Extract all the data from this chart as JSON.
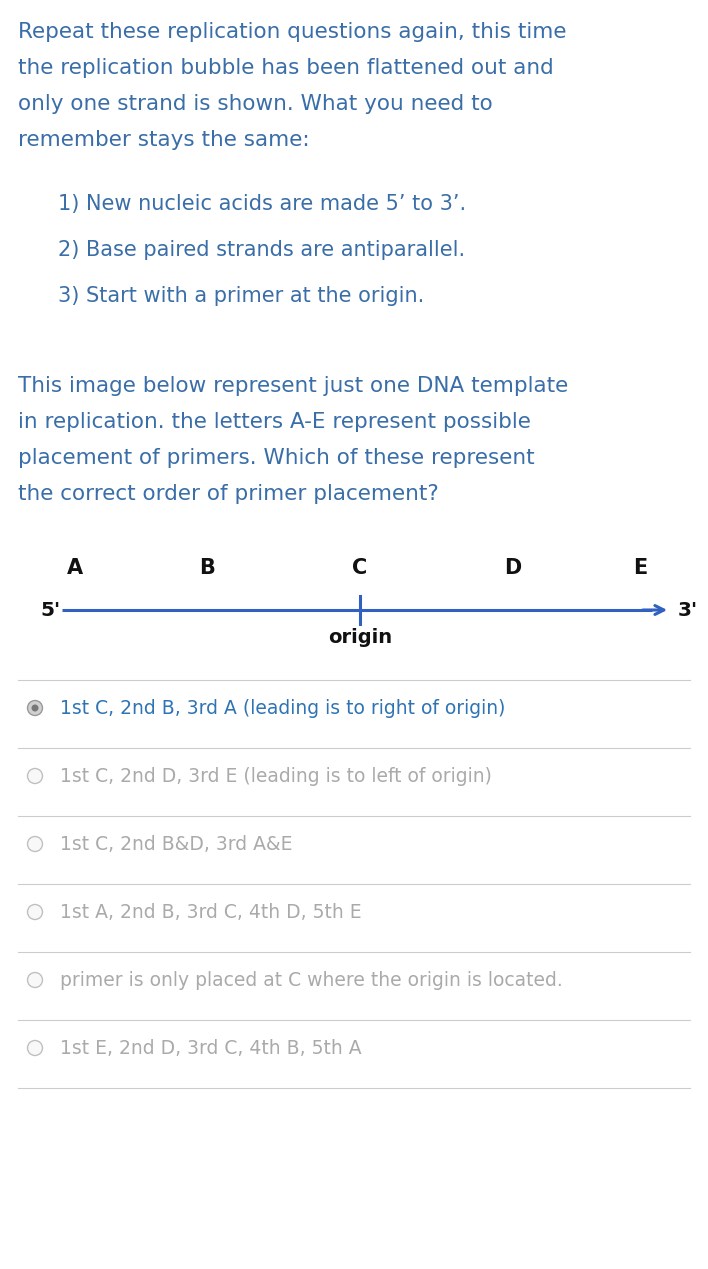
{
  "bg_color": "#ffffff",
  "fig_w": 7.08,
  "fig_h": 12.69,
  "dpi": 100,
  "intro_lines": [
    "Repeat these replication questions again, this time",
    "the replication bubble has been flattened out and",
    "only one strand is shown. What you need to",
    "remember stays the same:"
  ],
  "intro_color": "#3a6ea8",
  "points": [
    "1) New nucleic acids are made 5’ to 3’.",
    "2) Base paired strands are antiparallel.",
    "3) Start with a primer at the origin."
  ],
  "points_color": "#3a6ea8",
  "body_lines": [
    "This image below represent just one DNA template",
    "in replication. the letters A-E represent possible",
    "placement of primers. Which of these represent",
    "the correct order of primer placement?"
  ],
  "body_color": "#3a6ea8",
  "strand_labels": [
    "A",
    "B",
    "C",
    "D",
    "E"
  ],
  "strand_color": "#3060c0",
  "choices": [
    {
      "text": "1st C, 2nd B, 3rd A (leading is to right of origin)",
      "selected": true,
      "text_color": "#2e74b5"
    },
    {
      "text": "1st C, 2nd D, 3rd E (leading is to left of origin)",
      "selected": false,
      "text_color": "#aaaaaa"
    },
    {
      "text": "1st C, 2nd B&D, 3rd A&E",
      "selected": false,
      "text_color": "#aaaaaa"
    },
    {
      "text": "1st A, 2nd B, 3rd C, 4th D, 5th E",
      "selected": false,
      "text_color": "#aaaaaa"
    },
    {
      "text": "primer is only placed at C where the origin is located.",
      "selected": false,
      "text_color": "#aaaaaa"
    },
    {
      "text": "1st E, 2nd D, 3rd C, 4th B, 5th A",
      "selected": false,
      "text_color": "#aaaaaa"
    }
  ],
  "divider_color": "#cccccc"
}
